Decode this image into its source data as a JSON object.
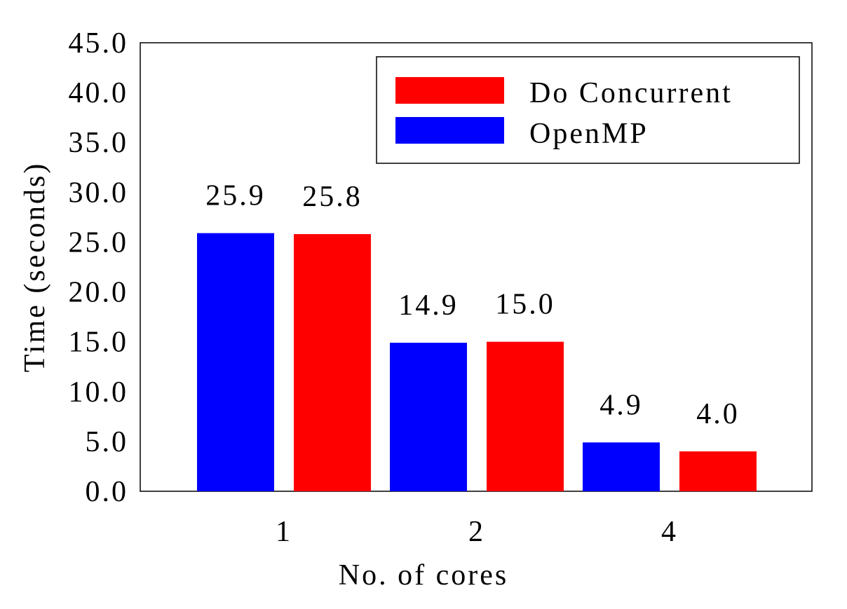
{
  "chart_data": {
    "type": "bar",
    "xlabel": "No. of cores",
    "ylabel": "Time (seconds)",
    "categories": [
      "1",
      "2",
      "4"
    ],
    "ylim": [
      0,
      45
    ],
    "yticks": [
      "0.0",
      "5.0",
      "10.0",
      "15.0",
      "20.0",
      "25.0",
      "30.0",
      "35.0",
      "40.0",
      "45.0"
    ],
    "grid": false,
    "legend_position": "top-right",
    "series": [
      {
        "name": "OpenMP",
        "color": "#0000ff",
        "values": [
          25.9,
          14.9,
          4.9
        ],
        "labels": [
          "25.9",
          "14.9",
          "4.9"
        ]
      },
      {
        "name": "Do Concurrent",
        "color": "#ff0000",
        "values": [
          25.8,
          15.0,
          4.0
        ],
        "labels": [
          "25.8",
          "15.0",
          "4.0"
        ]
      }
    ],
    "legend_order": [
      "Do Concurrent",
      "OpenMP"
    ]
  }
}
